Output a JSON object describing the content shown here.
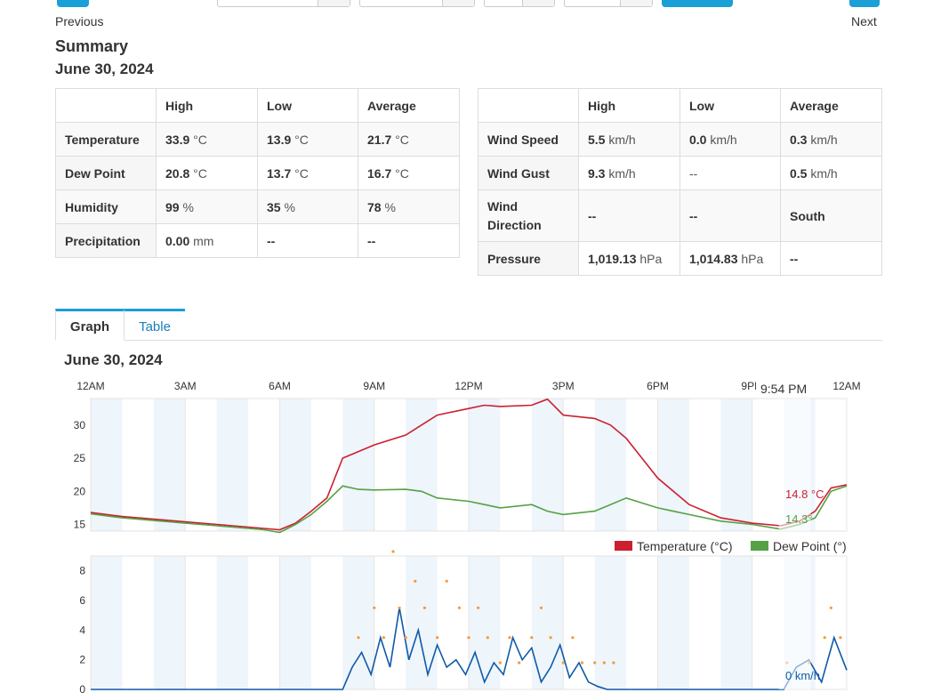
{
  "nav": {
    "previous": "Previous",
    "next": "Next"
  },
  "summary": {
    "title": "Summary",
    "date": "June 30, 2024",
    "left_table": {
      "headers": [
        "",
        "High",
        "Low",
        "Average"
      ],
      "rows": [
        {
          "label": "Temperature",
          "high": "33.9",
          "high_unit": "°C",
          "low": "13.9",
          "low_unit": "°C",
          "avg": "21.7",
          "avg_unit": "°C"
        },
        {
          "label": "Dew Point",
          "high": "20.8",
          "high_unit": "°C",
          "low": "13.7",
          "low_unit": "°C",
          "avg": "16.7",
          "avg_unit": "°C"
        },
        {
          "label": "Humidity",
          "high": "99",
          "high_unit": "%",
          "low": "35",
          "low_unit": "%",
          "avg": "78",
          "avg_unit": "%"
        },
        {
          "label": "Precipitation",
          "high": "0.00",
          "high_unit": "mm",
          "low": "--",
          "low_unit": "",
          "avg": "--",
          "avg_unit": ""
        }
      ]
    },
    "right_table": {
      "headers": [
        "",
        "High",
        "Low",
        "Average"
      ],
      "rows": [
        {
          "label": "Wind Speed",
          "high": "5.5",
          "high_unit": "km/h",
          "low": "0.0",
          "low_unit": "km/h",
          "avg": "0.3",
          "avg_unit": "km/h"
        },
        {
          "label": "Wind Gust",
          "high": "9.3",
          "high_unit": "km/h",
          "low": "--",
          "low_unit": "",
          "avg": "0.5",
          "avg_unit": "km/h"
        },
        {
          "label": "Wind Direction",
          "high": "--",
          "high_unit": "",
          "low": "--",
          "low_unit": "",
          "avg": "South",
          "avg_unit": ""
        },
        {
          "label": "Pressure",
          "high": "1,019.13",
          "high_unit": "hPa",
          "low": "1,014.83",
          "low_unit": "hPa",
          "avg": "--",
          "avg_unit": ""
        }
      ]
    }
  },
  "tabs": {
    "graph": "Graph",
    "table": "Table"
  },
  "graph": {
    "date": "June 30, 2024",
    "hover_time": "9:54 PM",
    "hover_temp": "14.8 °C",
    "hover_dew": "14.3°",
    "hover_wind": "0 km/h",
    "legend_temp": "Temperature (°C)",
    "legend_dew": "Dew Point (°)",
    "colors": {
      "temperature": "#cc1f2f",
      "dew_point": "#55a145",
      "wind": "#0f5aa8",
      "gust": "#f39a3a",
      "accent": "#1a9fd6"
    }
  },
  "chart_data": [
    {
      "type": "line",
      "x_ticks": [
        "12AM",
        "3AM",
        "6AM",
        "9AM",
        "12PM",
        "3PM",
        "6PM",
        "9PM",
        "12AM"
      ],
      "y_ticks": [
        "15",
        "20",
        "25",
        "30"
      ],
      "ylim": [
        14,
        34
      ],
      "legend": "bottom-right",
      "series": [
        {
          "name": "Temperature (°C)",
          "x": [
            0,
            1,
            2,
            3,
            4,
            5,
            5.5,
            6,
            6.5,
            7,
            7.5,
            8,
            8.5,
            9,
            10,
            10.5,
            11,
            12,
            12.5,
            13,
            14,
            14.5,
            15,
            16,
            16.5,
            17,
            18,
            19,
            20,
            21,
            21.9,
            22.5,
            23,
            23.5,
            24
          ],
          "y": [
            16.8,
            16.2,
            15.8,
            15.4,
            15.0,
            14.6,
            14.4,
            14.2,
            15.2,
            17.0,
            19.0,
            25.0,
            26.0,
            27.0,
            28.5,
            30.0,
            31.5,
            32.5,
            33.0,
            32.8,
            33.0,
            33.9,
            31.5,
            31.0,
            30.0,
            28.0,
            22.0,
            18.0,
            16.0,
            15.2,
            14.8,
            15.5,
            17.0,
            20.5,
            21.0
          ]
        },
        {
          "name": "Dew Point (°)",
          "x": [
            0,
            1,
            2,
            3,
            4,
            5,
            5.5,
            6,
            6.5,
            7,
            7.5,
            8,
            8.5,
            9,
            10,
            10.5,
            11,
            12,
            12.5,
            13,
            14,
            14.5,
            15,
            16,
            16.5,
            17,
            18,
            19,
            20,
            21,
            21.9,
            22.5,
            23,
            23.5,
            24
          ],
          "y": [
            16.6,
            16.0,
            15.6,
            15.2,
            14.8,
            14.4,
            14.2,
            13.8,
            15.0,
            16.5,
            18.5,
            20.8,
            20.3,
            20.2,
            20.3,
            20.0,
            19.0,
            18.5,
            18.0,
            17.5,
            18.0,
            17.0,
            16.5,
            17.0,
            18.0,
            19.0,
            17.5,
            16.5,
            15.5,
            15.0,
            14.3,
            15.0,
            16.0,
            20.0,
            20.8
          ]
        }
      ]
    },
    {
      "type": "line",
      "x_ticks": [],
      "y_ticks": [
        "0",
        "2",
        "4",
        "6",
        "8"
      ],
      "ylim": [
        0,
        9
      ],
      "series": [
        {
          "name": "Wind Speed",
          "x": [
            0,
            8,
            8.3,
            8.6,
            8.9,
            9.2,
            9.5,
            9.8,
            10.1,
            10.4,
            10.7,
            11,
            11.3,
            11.6,
            11.9,
            12.2,
            12.5,
            12.8,
            13.1,
            13.4,
            13.7,
            14,
            14.3,
            14.6,
            14.9,
            15.2,
            15.5,
            15.8,
            16.1,
            16.4,
            17,
            18,
            19,
            20,
            21,
            22,
            22.4,
            22.8,
            23.2,
            23.6,
            24
          ],
          "y": [
            0,
            0,
            1.5,
            2.5,
            1.0,
            3.5,
            1.5,
            5.5,
            2.0,
            4.0,
            1.0,
            3.0,
            1.5,
            2.0,
            1.0,
            2.5,
            0.5,
            1.8,
            1.0,
            3.5,
            2.0,
            2.8,
            0.5,
            1.5,
            3.0,
            0.8,
            1.8,
            0.5,
            0.2,
            0,
            0,
            0,
            0,
            0,
            0,
            0,
            1.5,
            2.0,
            0.5,
            3.5,
            1.3
          ]
        },
        {
          "name": "Wind Gust",
          "x": [
            8.5,
            9.0,
            9.3,
            9.6,
            9.8,
            10.0,
            10.3,
            10.6,
            11.0,
            11.3,
            11.7,
            12.0,
            12.3,
            12.6,
            13.0,
            13.3,
            13.6,
            14.0,
            14.3,
            14.6,
            15.0,
            15.3,
            15.6,
            16.0,
            16.3,
            16.6,
            22.1,
            22.8,
            23.3,
            23.5,
            23.8
          ],
          "y": [
            3.5,
            5.5,
            3.5,
            9.3,
            5.5,
            3.5,
            7.3,
            5.5,
            3.5,
            7.3,
            5.5,
            3.5,
            5.5,
            3.5,
            1.8,
            3.5,
            1.8,
            3.5,
            5.5,
            3.5,
            1.8,
            3.5,
            1.8,
            1.8,
            1.8,
            1.8,
            1.8,
            1.8,
            3.5,
            5.5,
            3.5
          ]
        }
      ]
    }
  ]
}
